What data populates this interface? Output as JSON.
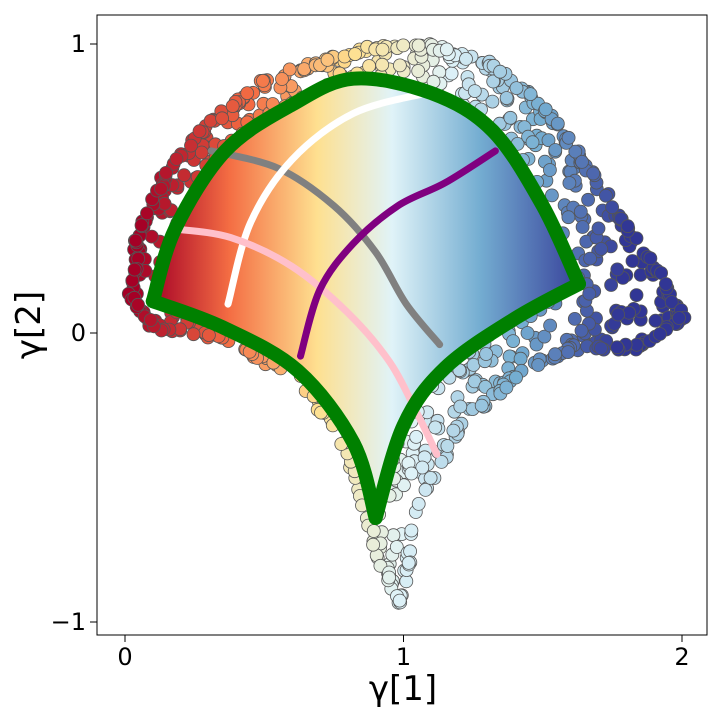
{
  "chart_data": {
    "type": "scatter",
    "title": "",
    "xlabel": "γ[1]",
    "ylabel": "γ[2]",
    "xlim": [
      -0.1,
      2.1
    ],
    "ylim": [
      -1.05,
      1.1
    ],
    "x_ticks": [
      {
        "value": 0,
        "label": "0"
      },
      {
        "value": 1,
        "label": "1"
      },
      {
        "value": 2,
        "label": "2"
      }
    ],
    "y_ticks": [
      {
        "value": -1,
        "label": "−1"
      },
      {
        "value": 0,
        "label": "0"
      },
      {
        "value": 1,
        "label": "1"
      }
    ],
    "grid": false,
    "legend": "none",
    "colormap": [
      "#a50026",
      "#f46d43",
      "#fee090",
      "#e0f3f8",
      "#74add1",
      "#313695"
    ],
    "series": [
      {
        "kind": "point-cloud",
        "marker": "circle",
        "edge_color": "#555555",
        "color_by": "position (red top-left to blue right)",
        "region_outline": [
          [
            0.02,
            0.13
          ],
          [
            0.05,
            0.35
          ],
          [
            0.15,
            0.55
          ],
          [
            0.3,
            0.72
          ],
          [
            0.48,
            0.86
          ],
          [
            0.68,
            0.93
          ],
          [
            0.9,
            0.99
          ],
          [
            1.1,
            0.99
          ],
          [
            1.32,
            0.93
          ],
          [
            1.5,
            0.78
          ],
          [
            1.64,
            0.6
          ],
          [
            1.78,
            0.4
          ],
          [
            1.92,
            0.2
          ],
          [
            2.0,
            0.05
          ],
          [
            1.85,
            -0.05
          ],
          [
            1.6,
            -0.05
          ],
          [
            1.4,
            -0.15
          ],
          [
            1.2,
            -0.32
          ],
          [
            1.05,
            -0.6
          ],
          [
            0.99,
            -0.93
          ],
          [
            0.9,
            -0.75
          ],
          [
            0.8,
            -0.4
          ],
          [
            0.62,
            -0.15
          ],
          [
            0.35,
            -0.02
          ],
          [
            0.1,
            0.02
          ]
        ]
      },
      {
        "kind": "filled-grid",
        "boundary": {
          "top": [
            [
              0.1,
              0.11
            ],
            [
              0.18,
              0.36
            ],
            [
              0.36,
              0.63
            ],
            [
              0.6,
              0.79
            ],
            [
              0.82,
              0.88
            ],
            [
              1.1,
              0.83
            ],
            [
              1.32,
              0.7
            ],
            [
              1.5,
              0.44
            ],
            [
              1.63,
              0.17
            ]
          ],
          "right": [
            [
              1.63,
              0.17
            ],
            [
              1.4,
              0.05
            ],
            [
              1.15,
              -0.12
            ],
            [
              1.0,
              -0.32
            ],
            [
              0.9,
              -0.64
            ]
          ],
          "left": [
            [
              0.9,
              -0.64
            ],
            [
              0.82,
              -0.38
            ],
            [
              0.62,
              -0.13
            ],
            [
              0.35,
              0.02
            ],
            [
              0.1,
              0.11
            ]
          ]
        }
      },
      {
        "kind": "outline",
        "color": "#008000",
        "points": [
          [
            0.1,
            0.11
          ],
          [
            0.18,
            0.36
          ],
          [
            0.36,
            0.63
          ],
          [
            0.6,
            0.79
          ],
          [
            0.82,
            0.88
          ],
          [
            1.1,
            0.83
          ],
          [
            1.32,
            0.7
          ],
          [
            1.5,
            0.44
          ],
          [
            1.63,
            0.17
          ],
          [
            1.4,
            0.05
          ],
          [
            1.15,
            -0.12
          ],
          [
            1.0,
            -0.32
          ],
          [
            0.9,
            -0.64
          ],
          [
            0.82,
            -0.38
          ],
          [
            0.62,
            -0.13
          ],
          [
            0.35,
            0.02
          ],
          [
            0.1,
            0.11
          ]
        ]
      },
      {
        "kind": "curve",
        "color": "#808080",
        "points": [
          [
            0.31,
            0.63
          ],
          [
            0.55,
            0.57
          ],
          [
            0.75,
            0.44
          ],
          [
            0.9,
            0.28
          ],
          [
            1.01,
            0.1
          ],
          [
            1.13,
            -0.04
          ]
        ]
      },
      {
        "kind": "curve",
        "color": "#ffffff",
        "points": [
          [
            0.37,
            0.1
          ],
          [
            0.45,
            0.38
          ],
          [
            0.6,
            0.6
          ],
          [
            0.82,
            0.76
          ],
          [
            1.08,
            0.83
          ]
        ]
      },
      {
        "kind": "curve",
        "color": "#ffc0cb",
        "points": [
          [
            0.18,
            0.36
          ],
          [
            0.38,
            0.33
          ],
          [
            0.6,
            0.23
          ],
          [
            0.8,
            0.07
          ],
          [
            0.95,
            -0.1
          ],
          [
            1.05,
            -0.28
          ],
          [
            1.12,
            -0.42
          ]
        ]
      },
      {
        "kind": "curve",
        "color": "#800080",
        "points": [
          [
            0.63,
            -0.08
          ],
          [
            0.7,
            0.15
          ],
          [
            0.82,
            0.31
          ],
          [
            0.98,
            0.44
          ],
          [
            1.15,
            0.52
          ],
          [
            1.33,
            0.63
          ]
        ]
      }
    ]
  }
}
